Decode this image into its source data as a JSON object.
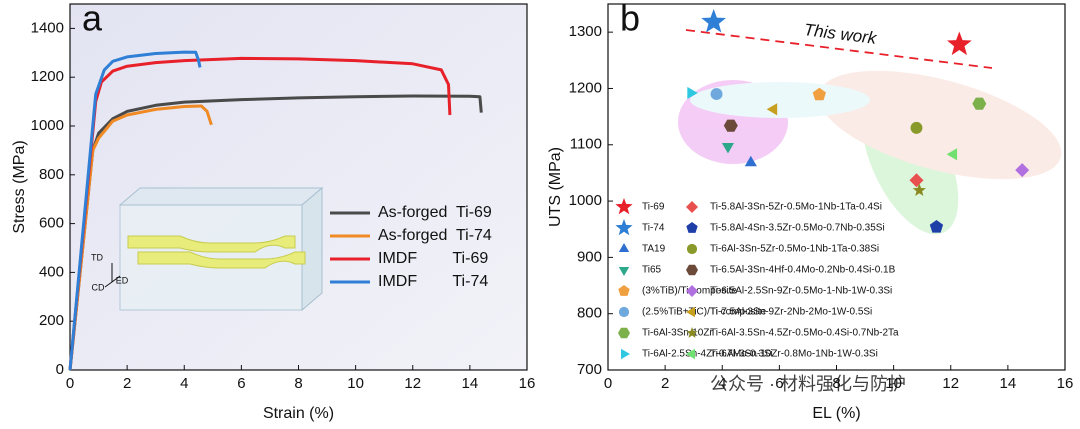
{
  "chart_data": [
    {
      "type": "line",
      "panel_label": "a",
      "x_label": "Strain (%)",
      "y_label": "Stress (MPa)",
      "xlim": [
        0,
        16
      ],
      "xticks": [
        0,
        2,
        4,
        6,
        8,
        10,
        12,
        14,
        16
      ],
      "ylim": [
        0,
        1500
      ],
      "yticks": [
        0,
        200,
        400,
        600,
        800,
        1000,
        1200,
        1400
      ],
      "inset_labels": [
        "TD",
        "CD",
        "ED"
      ],
      "series": [
        {
          "name": "As-forged  Ti-69",
          "color": "#4a4a4a",
          "x": [
            0,
            0.8,
            1.0,
            1.5,
            2,
            3,
            4,
            6,
            8,
            10,
            12,
            14,
            14.35,
            14.4
          ],
          "values": [
            0,
            900,
            970,
            1030,
            1060,
            1085,
            1098,
            1108,
            1115,
            1120,
            1123,
            1122,
            1120,
            1055
          ]
        },
        {
          "name": "As-forged  Ti-74",
          "color": "#f08a24",
          "x": [
            0,
            0.8,
            1.0,
            1.5,
            2,
            3,
            4,
            4.6,
            4.8,
            4.95
          ],
          "values": [
            0,
            900,
            950,
            1020,
            1045,
            1068,
            1080,
            1082,
            1060,
            1005
          ]
        },
        {
          "name": "IMDF        Ti-69",
          "color": "#e8202a",
          "x": [
            0,
            0.9,
            1.1,
            1.5,
            2,
            3,
            4,
            6,
            8,
            10,
            12,
            13,
            13.25,
            13.3
          ],
          "values": [
            0,
            1100,
            1180,
            1225,
            1245,
            1260,
            1268,
            1277,
            1275,
            1268,
            1255,
            1230,
            1170,
            1045
          ]
        },
        {
          "name": "IMDF        Ti-74",
          "color": "#2f7fd6",
          "x": [
            0,
            0.9,
            1.2,
            1.5,
            2,
            3,
            4,
            4.4,
            4.5,
            4.55
          ],
          "values": [
            0,
            1130,
            1230,
            1265,
            1283,
            1297,
            1303,
            1302,
            1270,
            1240
          ]
        }
      ]
    },
    {
      "type": "scatter",
      "panel_label": "b",
      "x_label": "EL (%)",
      "y_label": "UTS (MPa)",
      "xlim": [
        0,
        16
      ],
      "xticks": [
        0,
        2,
        4,
        6,
        8,
        10,
        12,
        14,
        16
      ],
      "ylim": [
        700,
        1350
      ],
      "yticks": [
        700,
        800,
        900,
        1000,
        1100,
        1200,
        1300
      ],
      "annotation": "This work",
      "series": [
        {
          "name": "Ti-69",
          "color": "#e8202a",
          "marker": "star",
          "x": [
            12.3
          ],
          "values": [
            1278
          ]
        },
        {
          "name": "Ti-74",
          "color": "#2f7fd6",
          "marker": "star",
          "x": [
            3.7
          ],
          "values": [
            1318
          ]
        },
        {
          "name": "TA19",
          "color": "#2f6fd0",
          "marker": "triangle-up",
          "x": [
            5.0
          ],
          "values": [
            1068
          ]
        },
        {
          "name": "Ti65",
          "color": "#2ea88a",
          "marker": "triangle-down",
          "x": [
            4.2
          ],
          "values": [
            1097
          ]
        },
        {
          "name": "(3%TiB)/Ti composite",
          "color": "#f0a040",
          "marker": "pentagon",
          "x": [
            7.4
          ],
          "values": [
            1189
          ]
        },
        {
          "name": "(2.5%TiB+TiC)/Ti composite",
          "color": "#6fa8dc",
          "marker": "circle",
          "x": [
            3.8
          ],
          "values": [
            1190
          ]
        },
        {
          "name": "Ti-6Al-3Sn-10Zr",
          "color": "#7bb04a",
          "marker": "hexagon",
          "x": [
            13.0
          ],
          "values": [
            1173
          ]
        },
        {
          "name": "Ti-6Al-2.5Sn-4Zr-0.7Mo-0.3Si",
          "color": "#30c8e0",
          "marker": "triangle-right",
          "x": [
            2.9
          ],
          "values": [
            1192
          ]
        },
        {
          "name": "Ti-5.8Al-3Sn-5Zr-0.5Mo-1Nb-1Ta-0.4Si",
          "color": "#e85050",
          "marker": "diamond",
          "x": [
            10.8
          ],
          "values": [
            1037
          ]
        },
        {
          "name": "Ti-5.8Al-4Sn-3.5Zr-0.5Mo-0.7Nb-0.35Si",
          "color": "#1f3fa8",
          "marker": "pentagon",
          "x": [
            11.5
          ],
          "values": [
            954
          ]
        },
        {
          "name": "Ti-6Al-3Sn-5Zr-0.5Mo-1Nb-1Ta-0.38Si",
          "color": "#8a9a2a",
          "marker": "circle",
          "x": [
            10.8
          ],
          "values": [
            1130
          ]
        },
        {
          "name": "Ti-6.5Al-3Sn-4Hf-0.4Mo-0.2Nb-0.4Si-0.1B",
          "color": "#6b4a3a",
          "marker": "hexagon",
          "x": [
            4.3
          ],
          "values": [
            1134
          ]
        },
        {
          "name": "Ti-6.5Al-2.5Sn-9Zr-0.5Mo-1-Nb-1W-0.3Si",
          "color": "#b070e0",
          "marker": "diamond",
          "x": [
            14.5
          ],
          "values": [
            1055
          ]
        },
        {
          "name": "Ti-7.5Al-3Sn-9Zr-2Nb-2Mo-1W-0.5Si",
          "color": "#c8a020",
          "marker": "triangle-left",
          "x": [
            5.8
          ],
          "values": [
            1163
          ]
        },
        {
          "name": "Ti-6Al-3.5Sn-4.5Zr-0.5Mo-0.4Si-0.7Nb-2Ta",
          "color": "#8a8a20",
          "marker": "star",
          "x": [
            10.9
          ],
          "values": [
            1019
          ]
        },
        {
          "name": "Ti-6Al-3Sn-10Zr-0.8Mo-1Nb-1W-0.3Si",
          "color": "#70e070",
          "marker": "triangle-left",
          "x": [
            12.1
          ],
          "values": [
            1083
          ]
        }
      ]
    }
  ],
  "watermark": "公众号 · 材料强化与防护"
}
